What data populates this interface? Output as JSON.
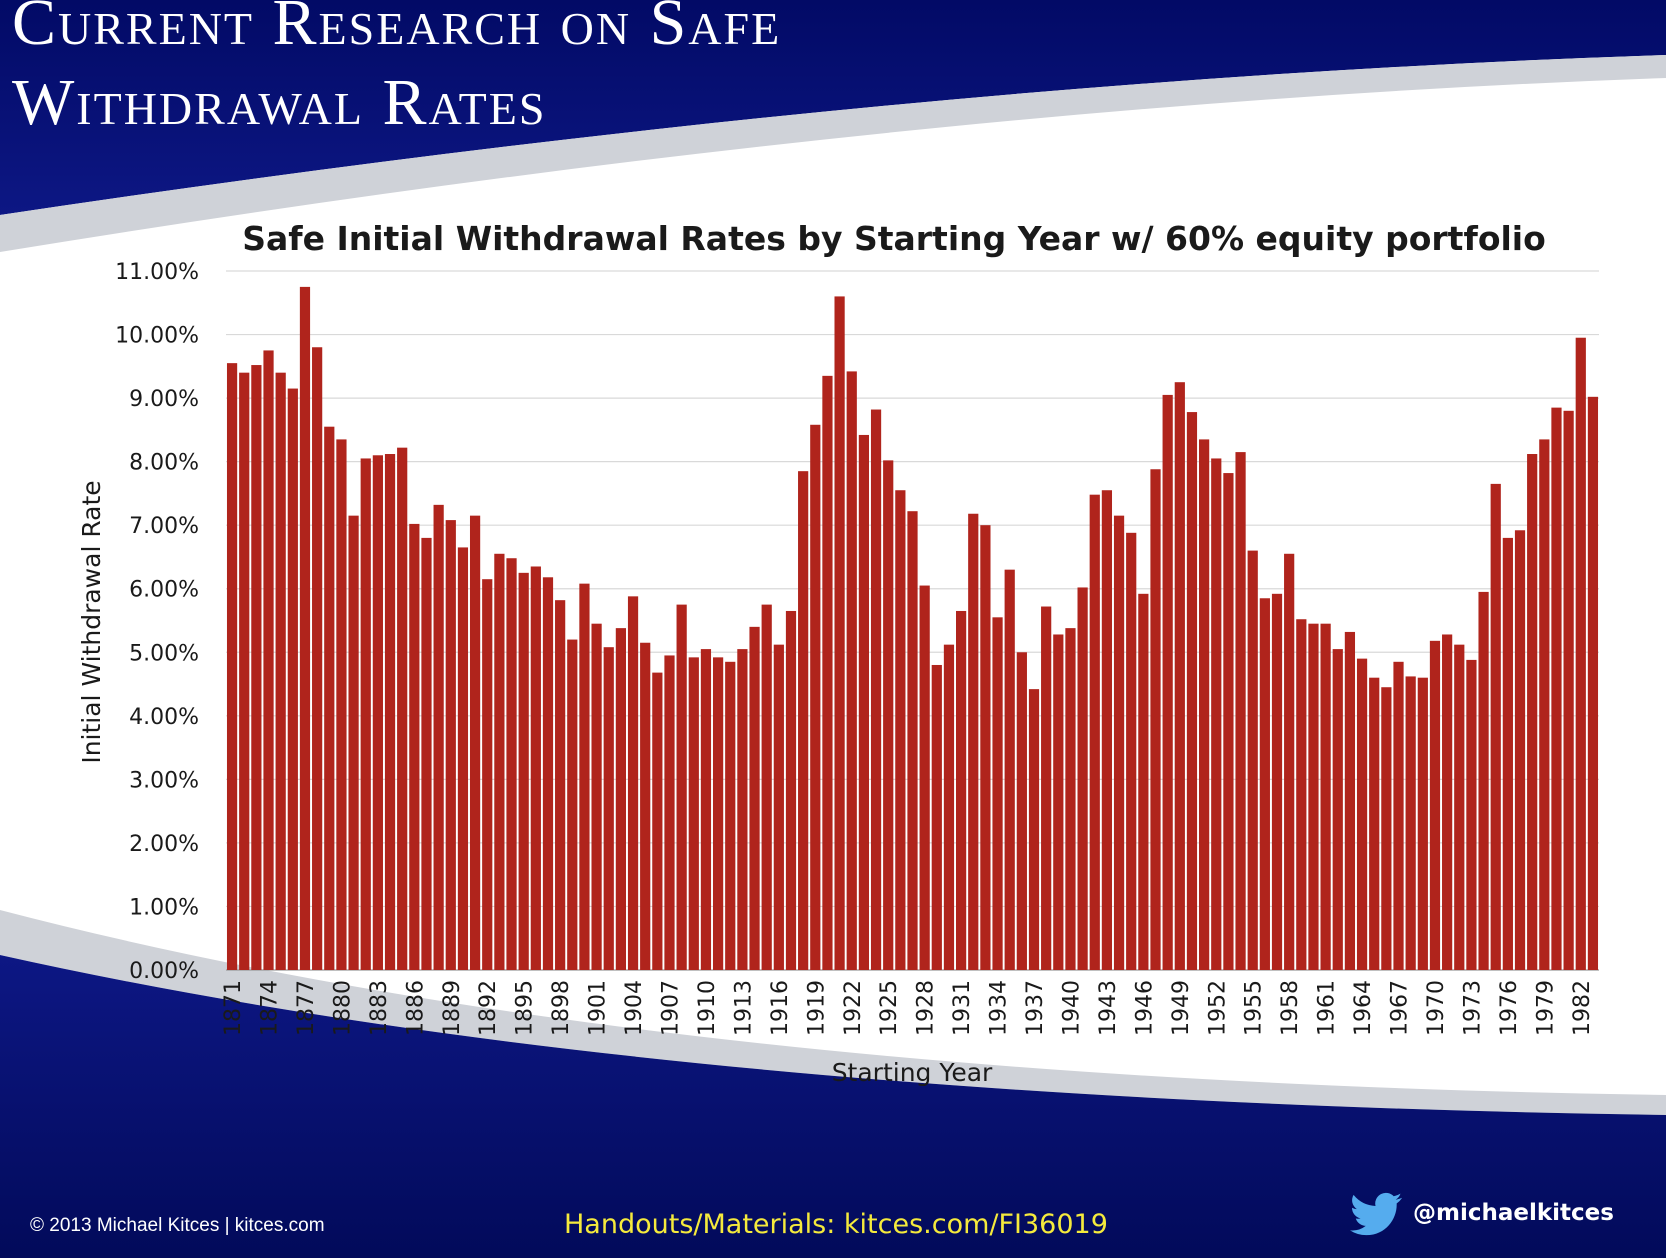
{
  "slide": {
    "title_line1": "Current Research on Safe",
    "title_line2": "Withdrawal Rates",
    "footer": {
      "copyright": "© 2013 Michael Kitces  |  kitces.com",
      "handouts": "Handouts/Materials: kitces.com/FI36019",
      "twitter_handle": "@michaelkitces",
      "icon": "twitter-bird-icon"
    },
    "colors": {
      "banner": "#0b127a",
      "swoosh": "#cfd2d8",
      "bar": "#b0241c",
      "handouts_text": "#f5ea3c"
    }
  },
  "chart_data": {
    "type": "bar",
    "title": "Safe Initial Withdrawal Rates by Starting Year w/ 60% equity portfolio",
    "xlabel": "Starting Year",
    "ylabel": "Initial Withdrawal Rate",
    "ylim": [
      0,
      11
    ],
    "yticks": [
      "0.00%",
      "1.00%",
      "2.00%",
      "3.00%",
      "4.00%",
      "5.00%",
      "6.00%",
      "7.00%",
      "8.00%",
      "9.00%",
      "10.00%",
      "11.00%"
    ],
    "grid": true,
    "legend": "none",
    "first_year": 1871,
    "x_tick_labels": [
      "1871",
      "1874",
      "1877",
      "1880",
      "1883",
      "1886",
      "1889",
      "1892",
      "1895",
      "1898",
      "1901",
      "1904",
      "1907",
      "1910",
      "1913",
      "1916",
      "1919",
      "1922",
      "1925",
      "1928",
      "1931",
      "1934",
      "1937",
      "1940",
      "1943",
      "1946",
      "1949",
      "1952",
      "1955",
      "1958",
      "1961",
      "1964",
      "1967",
      "1970",
      "1973",
      "1976",
      "1979",
      "1982"
    ],
    "values": [
      9.55,
      9.4,
      9.52,
      9.75,
      9.4,
      9.15,
      10.75,
      9.8,
      8.55,
      8.35,
      7.15,
      8.05,
      8.1,
      8.12,
      8.22,
      7.02,
      6.8,
      7.32,
      7.08,
      6.65,
      7.15,
      6.15,
      6.55,
      6.48,
      6.25,
      6.35,
      6.18,
      5.82,
      5.2,
      6.08,
      5.45,
      5.08,
      5.38,
      5.88,
      5.15,
      4.68,
      4.95,
      5.75,
      4.92,
      5.05,
      4.92,
      4.85,
      5.05,
      5.4,
      5.75,
      5.12,
      5.65,
      7.85,
      8.58,
      9.35,
      10.6,
      9.42,
      8.42,
      8.82,
      8.02,
      7.55,
      7.22,
      6.05,
      4.8,
      5.12,
      5.65,
      7.18,
      7.0,
      5.55,
      6.3,
      5.0,
      4.42,
      5.72,
      5.28,
      5.38,
      6.02,
      7.48,
      7.55,
      7.15,
      6.88,
      5.92,
      7.88,
      9.05,
      9.25,
      8.78,
      8.35,
      8.05,
      7.82,
      8.15,
      6.6,
      5.85,
      5.92,
      6.55,
      5.52,
      5.45,
      5.45,
      5.05,
      5.32,
      4.9,
      4.6,
      4.45,
      4.85,
      4.62,
      4.6,
      5.18,
      5.28,
      5.12,
      4.88,
      5.95,
      7.65,
      6.8,
      6.92,
      8.12,
      8.35,
      8.85,
      8.8,
      9.95,
      9.02
    ]
  }
}
